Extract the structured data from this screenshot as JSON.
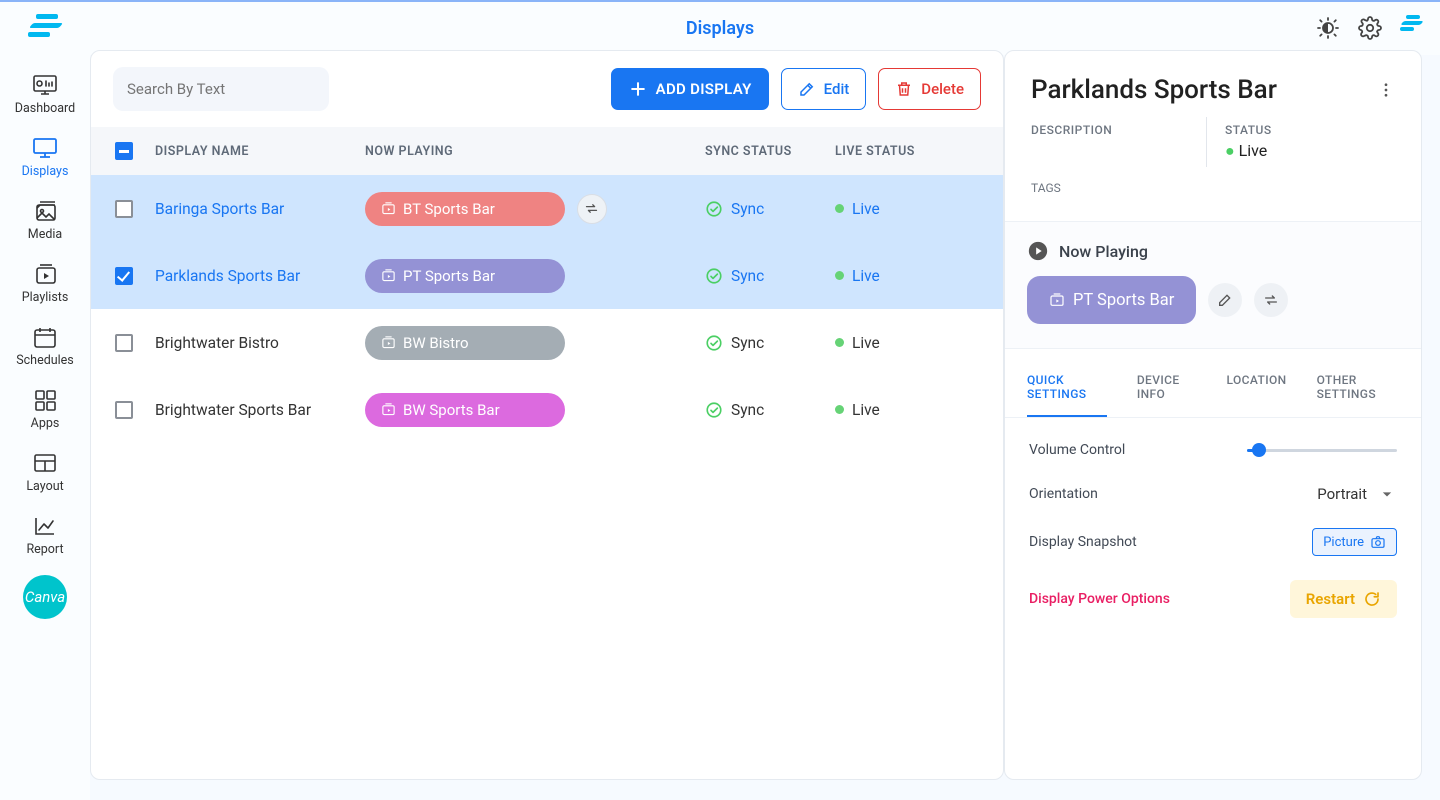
{
  "app_title": "Displays",
  "sidebar": {
    "items": [
      {
        "label": "Dashboard"
      },
      {
        "label": "Displays"
      },
      {
        "label": "Media"
      },
      {
        "label": "Playlists"
      },
      {
        "label": "Schedules"
      },
      {
        "label": "Apps"
      },
      {
        "label": "Layout"
      },
      {
        "label": "Report"
      }
    ],
    "canva_label": "Canva"
  },
  "toolbar": {
    "search_placeholder": "Search By Text",
    "add_label": "Add Display",
    "edit_label": "Edit",
    "delete_label": "Delete"
  },
  "columns": {
    "name": "DISPLAY NAME",
    "now": "NOW PLAYING",
    "sync": "SYNC STATUS",
    "live": "LIVE STATUS"
  },
  "sync_label": "Sync",
  "live_label": "Live",
  "rows": [
    {
      "name": "Baringa Sports Bar",
      "pill": "BT Sports Bar",
      "pill_color": "#ef8382",
      "selected": true,
      "checked": false,
      "swap": true
    },
    {
      "name": "Parklands Sports Bar",
      "pill": "PT Sports Bar",
      "pill_color": "#9492d5",
      "selected": true,
      "checked": true,
      "swap": false
    },
    {
      "name": "Brightwater Bistro",
      "pill": "BW Bistro",
      "pill_color": "#a4adb4",
      "selected": false,
      "checked": false,
      "swap": false
    },
    {
      "name": "Brightwater Sports Bar",
      "pill": "BW Sports Bar",
      "pill_color": "#dc6adf",
      "selected": false,
      "checked": false,
      "swap": false
    }
  ],
  "detail": {
    "title": "Parklands Sports Bar",
    "meta": {
      "description_label": "DESCRIPTION",
      "status_label": "STATUS",
      "status_value": "Live",
      "tags_label": "TAGS"
    },
    "now_playing_label": "Now Playing",
    "now_playing_pill": "PT Sports Bar",
    "now_playing_pill_color": "#9492d5",
    "tabs": [
      "QUICK SETTINGS",
      "DEVICE INFO",
      "LOCATION",
      "OTHER SETTINGS"
    ],
    "active_tab": 0,
    "settings": {
      "volume_label": "Volume Control",
      "volume_pct": 8,
      "orientation_label": "Orientation",
      "orientation_value": "Portrait",
      "snapshot_label": "Display Snapshot",
      "picture_label": "Picture",
      "power_label": "Display Power Options",
      "restart_label": "Restart"
    }
  },
  "colors": {
    "accent": "#1976f2",
    "green": "#4bcf64",
    "red": "#e53935",
    "yellow_bg": "#fff6da",
    "yellow_text": "#e9a500"
  }
}
